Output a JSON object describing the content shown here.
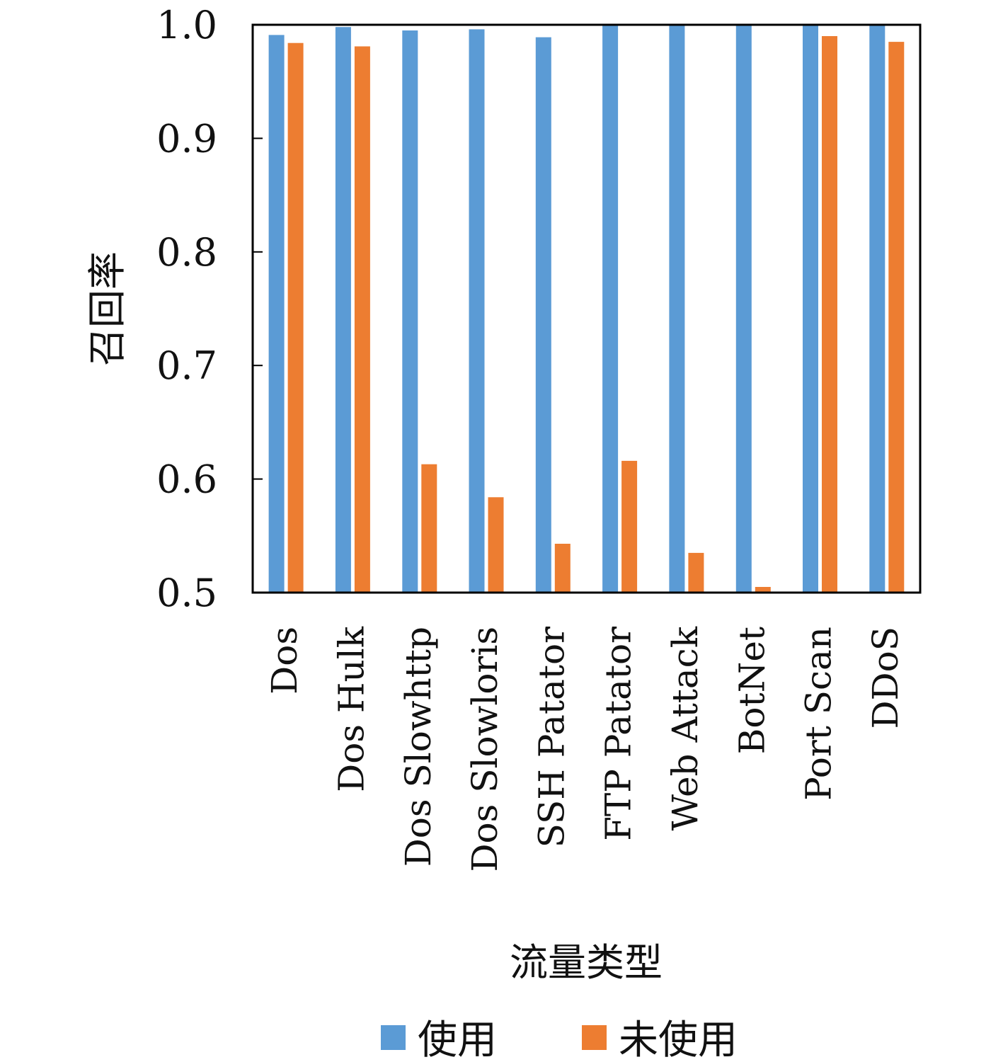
{
  "chart_data": {
    "type": "bar",
    "categories": [
      "Dos",
      "Dos Hulk",
      "Dos Slowhttp",
      "Dos Slowloris",
      "SSH Patator",
      "FTP Patator",
      "Web Attack",
      "BotNet",
      "Port Scan",
      "DDoS"
    ],
    "series": [
      {
        "name": "使用",
        "color": "#5b9bd5",
        "values": [
          0.991,
          0.998,
          0.995,
          0.996,
          0.989,
          1.0,
          1.0,
          1.0,
          1.0,
          1.0
        ]
      },
      {
        "name": "未使用",
        "color": "#ed7d31",
        "values": [
          0.984,
          0.981,
          0.613,
          0.584,
          0.543,
          0.616,
          0.535,
          0.505,
          0.99,
          0.985
        ]
      }
    ],
    "xlabel": "流量类型",
    "ylabel": "召回率",
    "ylim": [
      0.5,
      1.0
    ],
    "yticks": [
      "0.5",
      "0.6",
      "0.7",
      "0.8",
      "0.9",
      "1.0"
    ],
    "grid": false,
    "legend_position": "bottom"
  }
}
